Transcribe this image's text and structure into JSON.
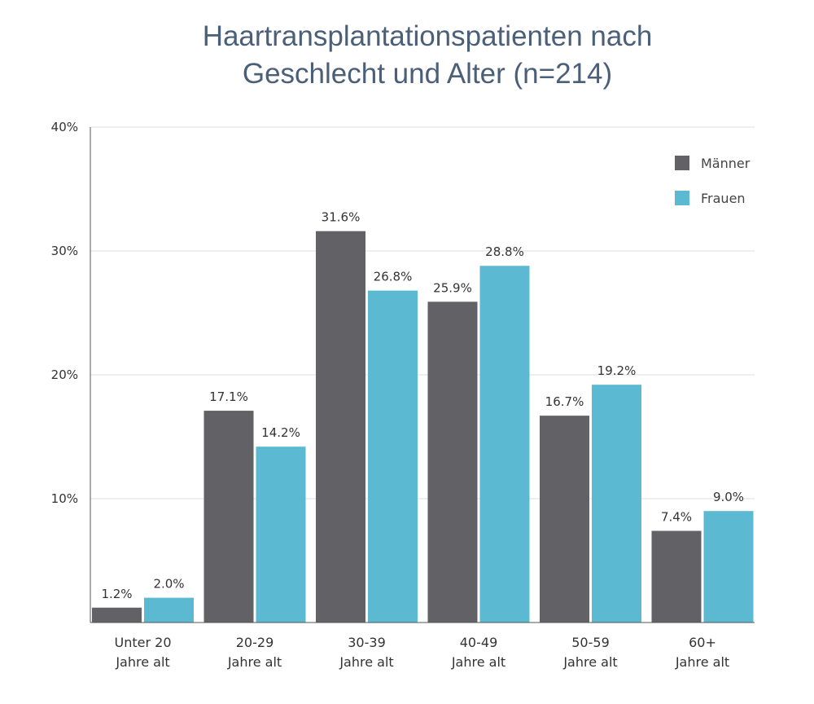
{
  "title_line1": "Haartransplantationspatienten nach",
  "title_line2": "Geschlecht und Alter (n=214)",
  "chart_data": {
    "type": "bar",
    "title": "Haartransplantationspatienten nach Geschlecht und Alter (n=214)",
    "categories": [
      [
        "Unter 20",
        "Jahre alt"
      ],
      [
        "20-29",
        "Jahre alt"
      ],
      [
        "30-39",
        "Jahre alt"
      ],
      [
        "40-49",
        "Jahre alt"
      ],
      [
        "50-59",
        "Jahre alt"
      ],
      [
        "60+",
        "Jahre alt"
      ]
    ],
    "series": [
      {
        "name": "Männer",
        "color": "#616166",
        "values": [
          1.2,
          17.1,
          31.6,
          25.9,
          16.7,
          7.4
        ],
        "labels": [
          "1.2%",
          "17.1%",
          "31.6%",
          "25.9%",
          "16.7%",
          "7.4%"
        ]
      },
      {
        "name": "Frauen",
        "color": "#5bbad1",
        "values": [
          2.0,
          14.2,
          26.8,
          28.8,
          19.2,
          9.0
        ],
        "labels": [
          "2.0%",
          "14.2%",
          "26.8%",
          "28.8%",
          "19.2%",
          "9.0%"
        ]
      }
    ],
    "yticks": [
      {
        "value": 10,
        "label": "10%"
      },
      {
        "value": 20,
        "label": "20%"
      },
      {
        "value": 30,
        "label": "30%"
      },
      {
        "value": 40,
        "label": "40%"
      }
    ],
    "ylim": [
      0,
      40
    ],
    "grid": true,
    "legend_position": "top-right"
  }
}
